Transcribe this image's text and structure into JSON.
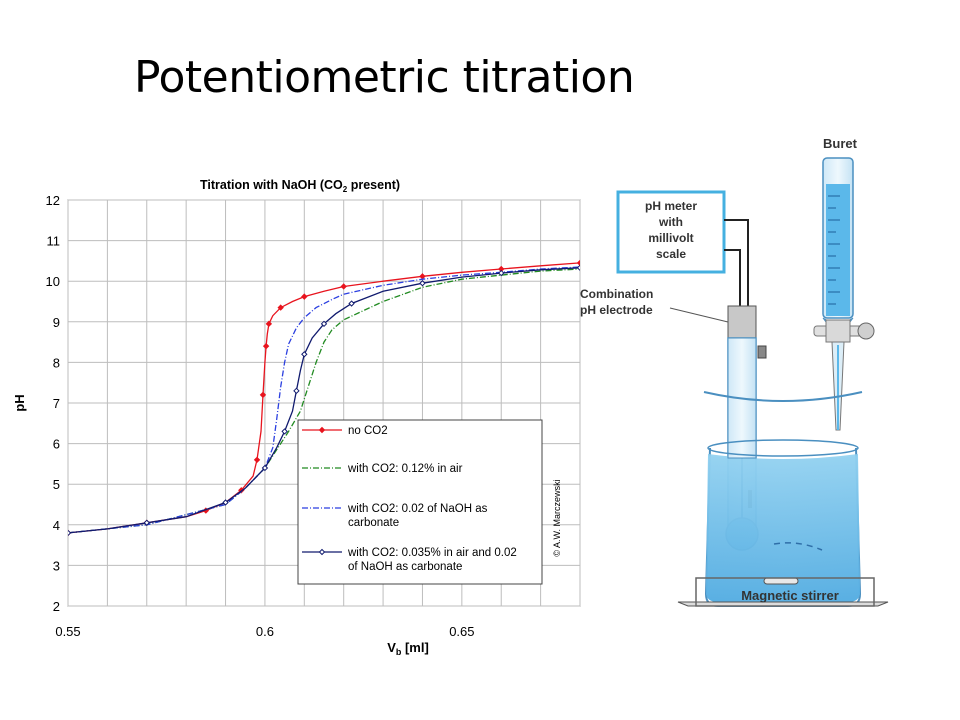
{
  "slide": {
    "title": "Potentiometric titration"
  },
  "chart_data": {
    "type": "line",
    "title_main": "Titration with NaOH (CO",
    "title_sub": "2",
    "title_end": " present)",
    "xlabel_main": "V",
    "xlabel_sub": "b",
    "xlabel_end": " [ml]",
    "ylabel": "pH",
    "xlim": [
      0.55,
      0.68
    ],
    "ylim": [
      2,
      12
    ],
    "x_ticks": [
      0.55,
      0.6,
      0.65
    ],
    "x_tick_labels": [
      "0.55",
      "0.6",
      "0.65"
    ],
    "y_ticks": [
      2,
      3,
      4,
      5,
      6,
      7,
      8,
      9,
      10,
      11,
      12
    ],
    "y_tick_labels": [
      "2",
      "3",
      "4",
      "5",
      "6",
      "7",
      "8",
      "9",
      "10",
      "11",
      "12"
    ],
    "grid": true,
    "legend_position": "bottom-right",
    "watermark": "© A.W. Marczewski",
    "series": [
      {
        "name": "no CO2",
        "color": "#e8141e",
        "style": "solid",
        "marker": "diamond",
        "x": [
          0.55,
          0.56,
          0.57,
          0.58,
          0.585,
          0.59,
          0.594,
          0.597,
          0.598,
          0.599,
          0.5995,
          0.6,
          0.6003,
          0.6006,
          0.601,
          0.602,
          0.604,
          0.607,
          0.61,
          0.615,
          0.62,
          0.63,
          0.64,
          0.65,
          0.66,
          0.67,
          0.68
        ],
        "y": [
          3.8,
          3.9,
          4.05,
          4.2,
          4.35,
          4.55,
          4.85,
          5.2,
          5.6,
          6.3,
          7.2,
          8.0,
          8.4,
          8.7,
          8.95,
          9.15,
          9.35,
          9.5,
          9.62,
          9.75,
          9.87,
          10.0,
          10.12,
          10.22,
          10.3,
          10.38,
          10.45
        ]
      },
      {
        "name": "with CO2: 0.12% in air",
        "color": "#228b22",
        "style": "dashdot",
        "marker": "none",
        "x": [
          0.55,
          0.57,
          0.59,
          0.595,
          0.6,
          0.603,
          0.606,
          0.609,
          0.611,
          0.613,
          0.615,
          0.617,
          0.62,
          0.63,
          0.64,
          0.65,
          0.66,
          0.67,
          0.68
        ],
        "y": [
          3.8,
          4.0,
          4.5,
          4.9,
          5.4,
          5.85,
          6.3,
          6.8,
          7.4,
          8.0,
          8.5,
          8.8,
          9.05,
          9.5,
          9.85,
          10.05,
          10.15,
          10.25,
          10.3
        ]
      },
      {
        "name": "with CO2: 0.02 of NaOH as carbonate",
        "color": "#2b3fe0",
        "style": "dashdot",
        "marker": "none",
        "x": [
          0.55,
          0.57,
          0.59,
          0.595,
          0.6,
          0.602,
          0.603,
          0.604,
          0.605,
          0.606,
          0.608,
          0.61,
          0.613,
          0.617,
          0.62,
          0.63,
          0.64,
          0.65,
          0.66,
          0.67,
          0.68
        ],
        "y": [
          3.8,
          4.0,
          4.5,
          4.9,
          5.4,
          5.9,
          6.6,
          7.4,
          8.0,
          8.45,
          8.85,
          9.1,
          9.35,
          9.55,
          9.68,
          9.9,
          10.05,
          10.15,
          10.22,
          10.3,
          10.35
        ]
      },
      {
        "name": "with CO2: 0.035% in air and 0.02 of NaOH as carbonate",
        "color": "#101a6e",
        "style": "solid",
        "marker": "diamond-open",
        "x": [
          0.55,
          0.56,
          0.57,
          0.58,
          0.59,
          0.595,
          0.6,
          0.603,
          0.605,
          0.607,
          0.608,
          0.609,
          0.61,
          0.612,
          0.615,
          0.618,
          0.622,
          0.63,
          0.64,
          0.65,
          0.66,
          0.67,
          0.68
        ],
        "y": [
          3.8,
          3.9,
          4.05,
          4.2,
          4.55,
          4.9,
          5.4,
          5.9,
          6.3,
          6.8,
          7.3,
          7.8,
          8.2,
          8.6,
          8.95,
          9.2,
          9.45,
          9.75,
          9.95,
          10.1,
          10.2,
          10.28,
          10.33
        ]
      }
    ]
  },
  "apparatus": {
    "buret_label": "Buret",
    "meter_label": [
      "pH meter",
      "with",
      "millivolt",
      "scale"
    ],
    "electrode_label": [
      "Combination",
      "pH electrode"
    ],
    "stirrer_label": "Magnetic stirrer"
  }
}
